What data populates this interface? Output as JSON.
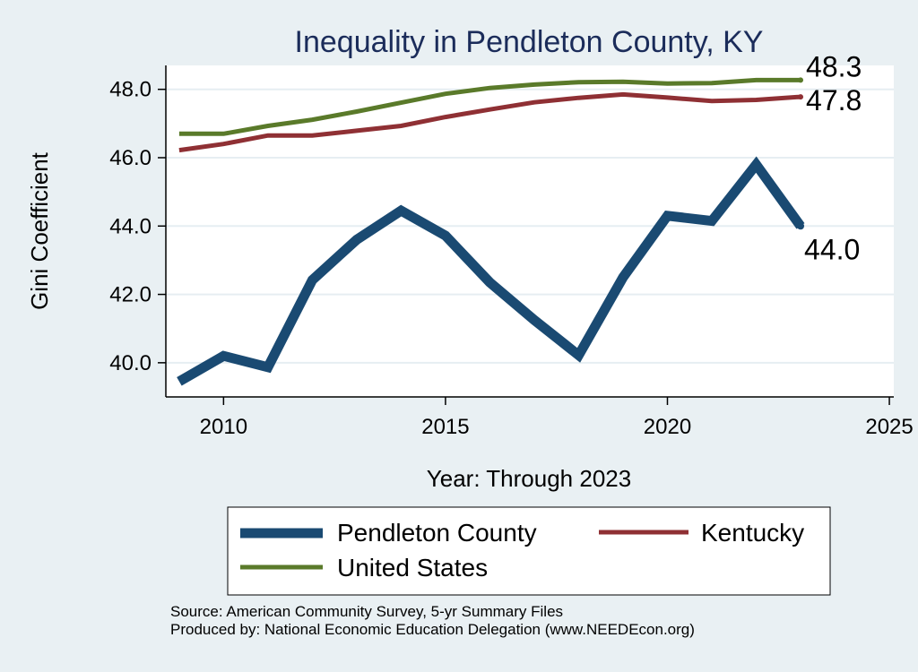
{
  "chart_data": {
    "type": "line",
    "title": "Inequality in Pendleton County, KY",
    "xlabel": "Year: Through 2023",
    "ylabel": "Gini Coefficient",
    "xlim": [
      2008.7,
      2025.1
    ],
    "ylim": [
      39.0,
      48.7
    ],
    "x_ticks": [
      2010,
      2015,
      2020,
      2025
    ],
    "y_ticks": [
      40.0,
      42.0,
      44.0,
      46.0,
      48.0
    ],
    "x_tick_labels": [
      "2010",
      "2015",
      "2020",
      "2025"
    ],
    "y_tick_labels": [
      "40.0",
      "42.0",
      "44.0",
      "46.0",
      "48.0"
    ],
    "grid": true,
    "x": [
      2009,
      2010,
      2011,
      2012,
      2013,
      2014,
      2015,
      2016,
      2017,
      2018,
      2019,
      2020,
      2021,
      2022,
      2023
    ],
    "series": [
      {
        "name": "Pendleton County",
        "color": "#1a4a72",
        "values": [
          39.45,
          40.2,
          39.87,
          42.42,
          43.6,
          44.45,
          43.72,
          42.35,
          41.25,
          40.22,
          42.5,
          44.3,
          44.15,
          45.8,
          44.0
        ],
        "end_label": "44.0"
      },
      {
        "name": "Kentucky",
        "color": "#8f3034",
        "values": [
          46.22,
          46.4,
          46.65,
          46.65,
          46.79,
          46.93,
          47.19,
          47.41,
          47.62,
          47.75,
          47.85,
          47.76,
          47.66,
          47.69,
          47.78
        ],
        "end_label": "47.8"
      },
      {
        "name": "United States",
        "color": "#5a7a2a",
        "values": [
          46.7,
          46.7,
          46.93,
          47.11,
          47.35,
          47.61,
          47.87,
          48.04,
          48.14,
          48.21,
          48.22,
          48.17,
          48.18,
          48.27,
          48.27
        ],
        "end_label": "48.3"
      }
    ],
    "legend": [
      "Pendleton County",
      "Kentucky",
      "United States"
    ],
    "legend_position": "bottom"
  },
  "source_line1": "Source: American Community Survey, 5-yr Summary Files",
  "source_line2": "Produced by: National Economic Education Delegation (www.NEEDEcon.org)"
}
